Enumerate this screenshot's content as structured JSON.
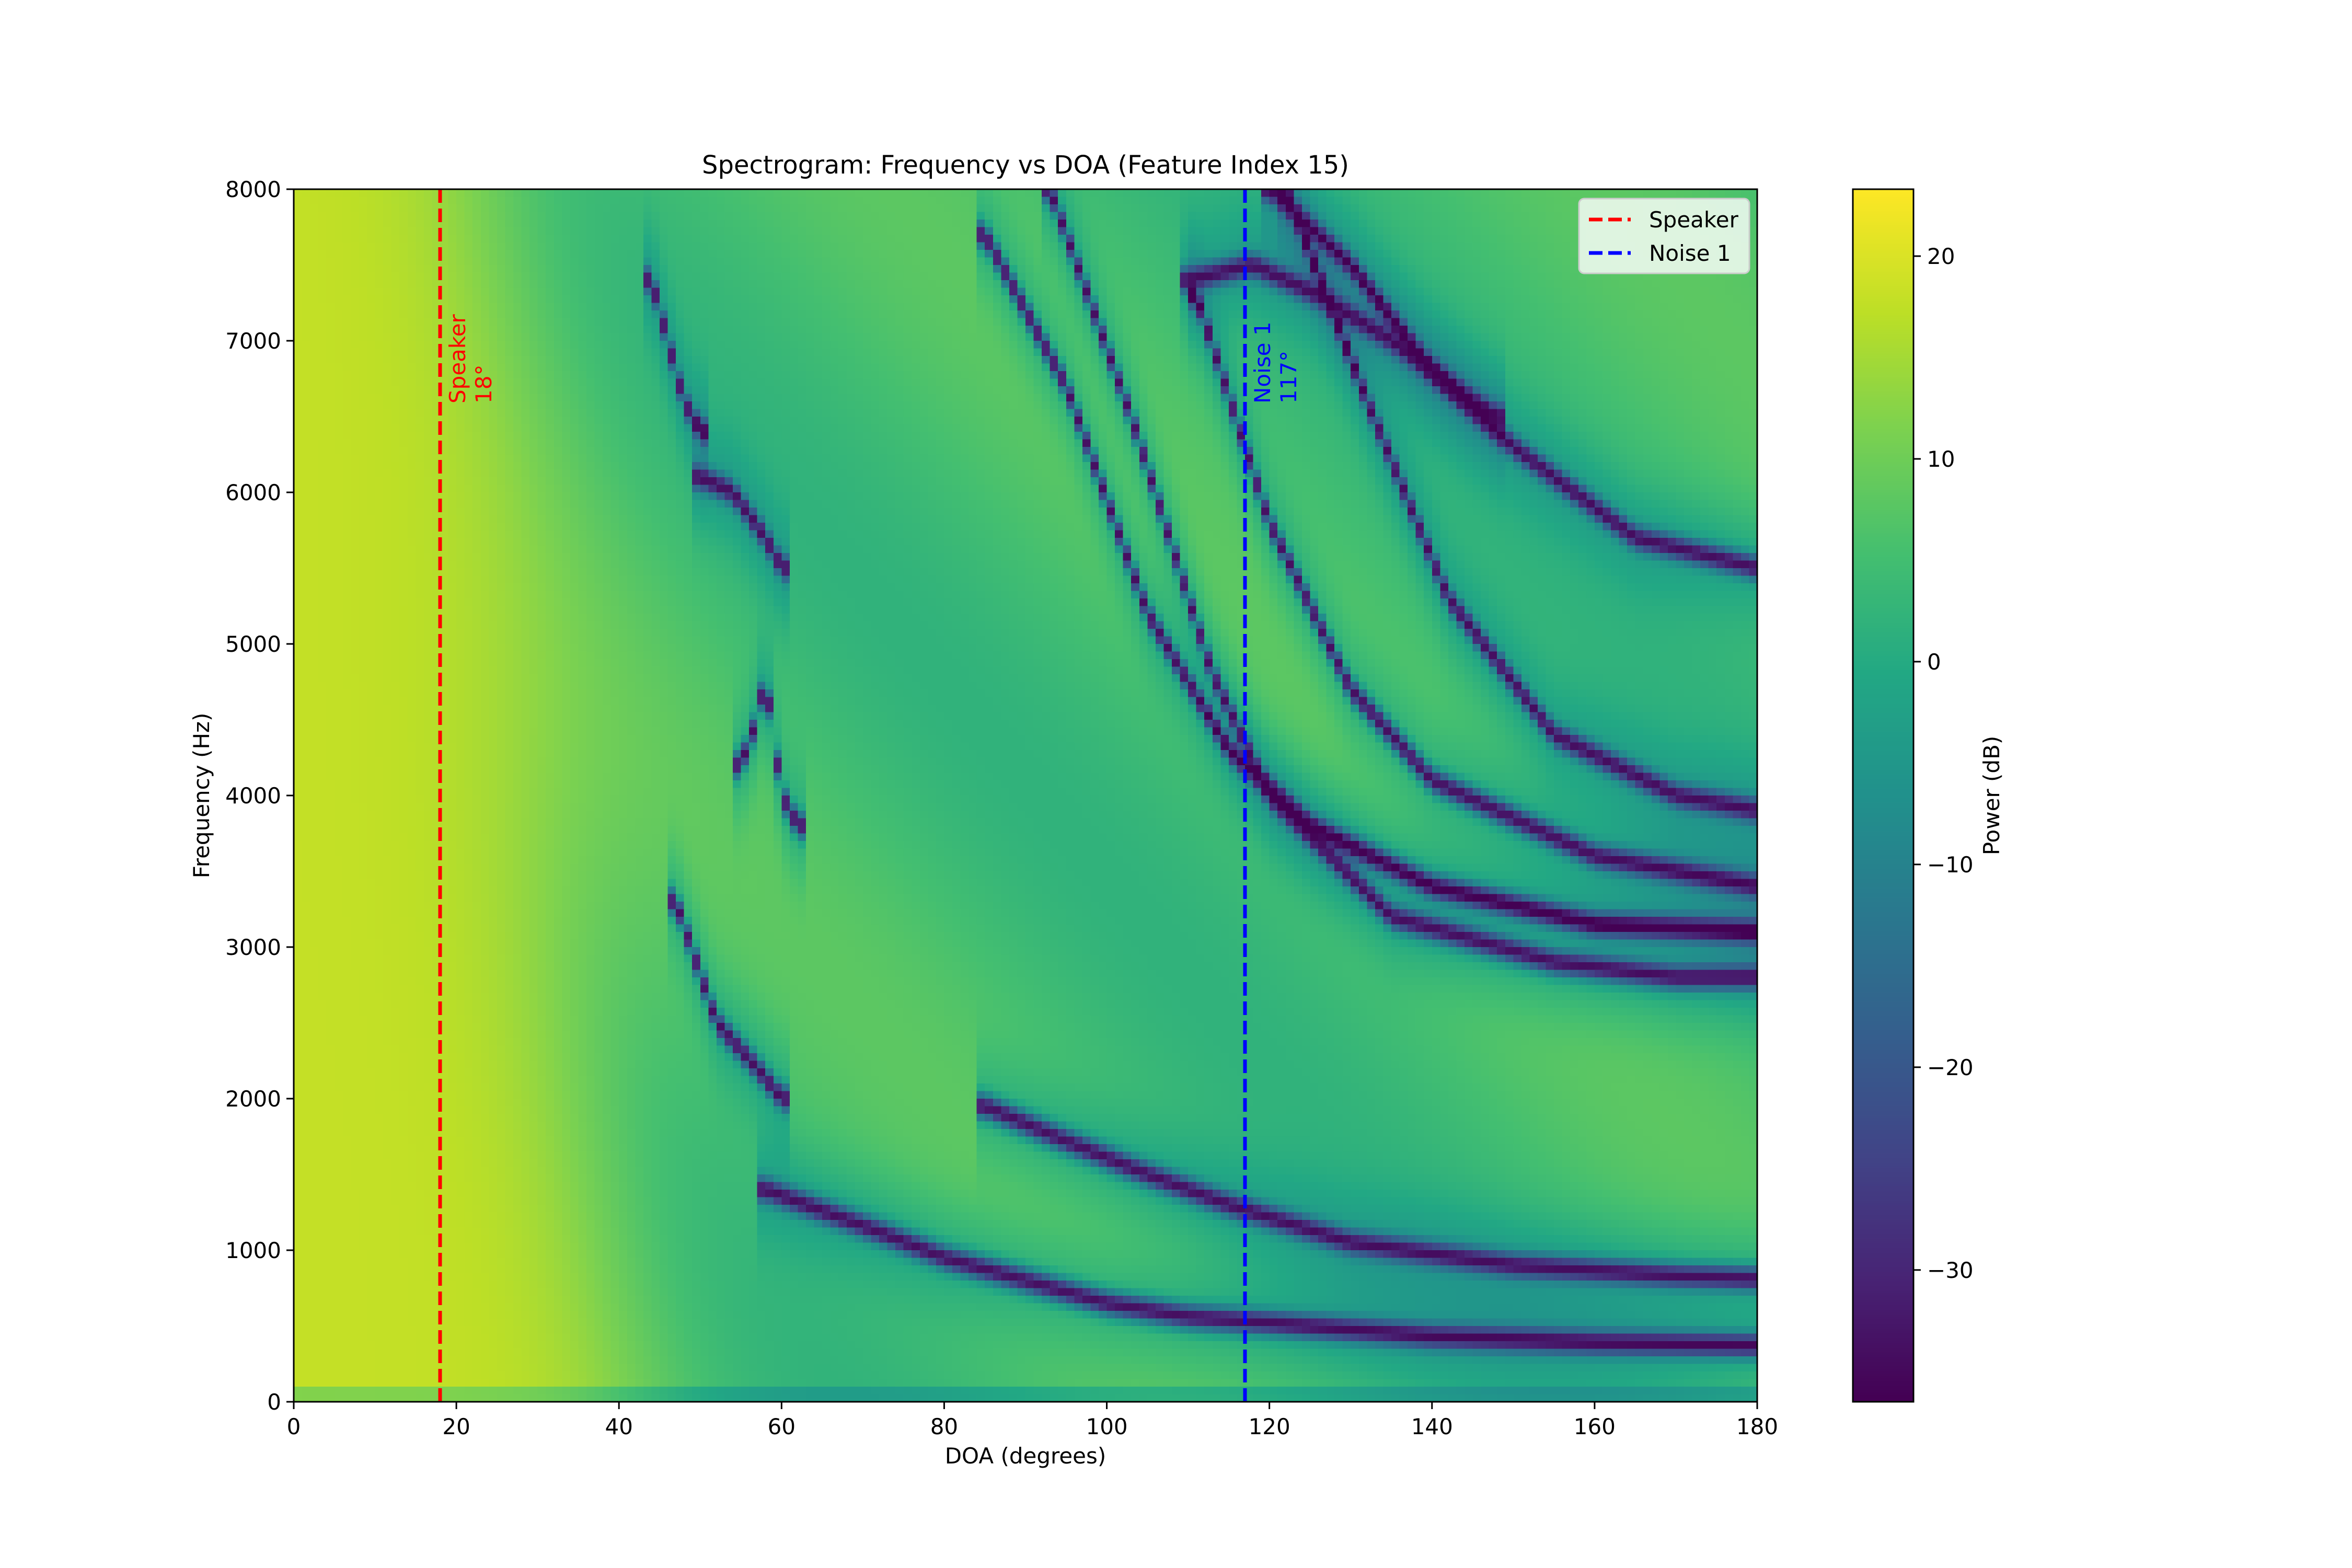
{
  "chart_data": [
    {
      "type": "heatmap",
      "title": "Spectrogram: Frequency vs DOA (Feature Index 15)",
      "xlabel": "DOA (degrees)",
      "ylabel": "Frequency (Hz)",
      "xlim": [
        0,
        180
      ],
      "ylim": [
        0,
        8000
      ],
      "xticks": [
        0,
        20,
        40,
        60,
        80,
        100,
        120,
        140,
        160,
        180
      ],
      "yticks": [
        0,
        1000,
        2000,
        3000,
        4000,
        5000,
        6000,
        7000,
        8000
      ],
      "xtick_labels": [
        "0",
        "20",
        "40",
        "60",
        "80",
        "100",
        "120",
        "140",
        "160",
        "180"
      ],
      "ytick_labels": [
        "0",
        "1000",
        "2000",
        "3000",
        "4000",
        "5000",
        "6000",
        "7000",
        "8000"
      ],
      "colormap": "viridis",
      "grid": false,
      "legend_placement": "top-right",
      "colorbar": {
        "label": "Power (dB)",
        "range": [
          -36.5,
          23.3
        ],
        "ticks": [
          20,
          10,
          0,
          -10,
          -20,
          -30
        ],
        "tick_labels": [
          "20",
          "10",
          "0",
          "−10",
          "−20",
          "−30"
        ]
      },
      "background_model": {
        "base_high_db": 18,
        "base_low_db": 5,
        "null_min_db": -32
      },
      "spectral_nulls": [
        {
          "doa": [
            47,
            52,
            57,
            60
          ],
          "freq": [
            3300,
            2500,
            2200,
            2000
          ]
        },
        {
          "doa": [
            58,
            64,
            72,
            80,
            90,
            100,
            110,
            120,
            140,
            160,
            180
          ],
          "freq": [
            1400,
            1280,
            1120,
            950,
            800,
            650,
            560,
            520,
            430,
            390,
            370
          ]
        },
        {
          "doa": [
            85,
            95,
            105,
            115,
            130,
            150,
            170,
            180
          ],
          "freq": [
            1950,
            1720,
            1500,
            1300,
            1050,
            900,
            830,
            810
          ]
        },
        {
          "doa": [
            85,
            95,
            105,
            115,
            125,
            140,
            160,
            180
          ],
          "freq": [
            7700,
            6700,
            5200,
            4300,
            3800,
            3400,
            3150,
            3100
          ]
        },
        {
          "doa": [
            93,
            103,
            113,
            120,
            135,
            155,
            170,
            180
          ],
          "freq": [
            8000,
            6500,
            4800,
            4000,
            3200,
            2900,
            2800,
            2800
          ]
        },
        {
          "doa": [
            111,
            120,
            130,
            140,
            160,
            180
          ],
          "freq": [
            7300,
            5800,
            4700,
            4100,
            3600,
            3400
          ]
        },
        {
          "doa": [
            122,
            132,
            142,
            155,
            170,
            180
          ],
          "freq": [
            8000,
            6600,
            5300,
            4400,
            4000,
            3900
          ]
        },
        {
          "doa": [
            120,
            130,
            140,
            150,
            165,
            180
          ],
          "freq": [
            8000,
            7500,
            6800,
            6300,
            5700,
            5500
          ]
        },
        {
          "doa": [
            110,
            118,
            126,
            135,
            145,
            148
          ],
          "freq": [
            7400,
            7500,
            7300,
            7000,
            6600,
            6500
          ]
        },
        {
          "doa": [
            44,
            46,
            48,
            50
          ],
          "freq": [
            7400,
            7000,
            6600,
            6400
          ]
        },
        {
          "doa": [
            50,
            54,
            58,
            60
          ],
          "freq": [
            6100,
            6000,
            5700,
            5500
          ]
        },
        {
          "doa": [
            55,
            57,
            58,
            60,
            62
          ],
          "freq": [
            4200,
            4500,
            4800,
            4000,
            3800
          ]
        }
      ],
      "series": [
        {
          "name": "Speaker",
          "x": 18,
          "line_style": "dashed",
          "color": "#ff0000",
          "annotation": [
            "Speaker",
            "18°"
          ]
        },
        {
          "name": "Noise 1",
          "x": 117,
          "line_style": "dashed",
          "color": "#0000ff",
          "annotation": [
            "Noise 1",
            "117°"
          ]
        }
      ]
    }
  ]
}
